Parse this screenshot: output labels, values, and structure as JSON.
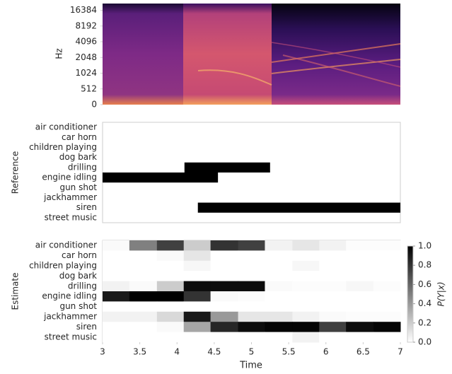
{
  "chart_data": [
    {
      "type": "spectrogram",
      "ylabel": "Hz",
      "ylim": [
        0,
        22050
      ],
      "yticks": [
        0,
        512,
        1024,
        2048,
        4096,
        8192,
        16384
      ]
    },
    {
      "type": "intervals",
      "ylabel": "Reference",
      "color": "#000000",
      "xlim": [
        3,
        7
      ],
      "categories": [
        "air conditioner",
        "car horn",
        "children playing",
        "dog bark",
        "drilling",
        "engine idling",
        "gun shot",
        "jackhammer",
        "siren",
        "street music"
      ],
      "intervals": [
        [],
        [],
        [],
        [],
        [
          [
            4.1,
            5.25
          ]
        ],
        [
          [
            3.0,
            4.55
          ]
        ],
        [],
        [],
        [
          [
            4.28,
            7.0
          ]
        ],
        []
      ]
    },
    {
      "type": "heatmap",
      "ylabel": "Estimate",
      "xlabel": "Time",
      "xlim": [
        3,
        7
      ],
      "xticks": [
        3,
        3.5,
        4,
        4.5,
        5,
        5.5,
        6,
        6.5,
        7
      ],
      "categories": [
        "air conditioner",
        "car horn",
        "children playing",
        "dog bark",
        "drilling",
        "engine idling",
        "gun shot",
        "jackhammer",
        "siren",
        "street music"
      ],
      "x": [
        3.0,
        3.36,
        3.73,
        4.09,
        4.45,
        4.82,
        5.18,
        5.55,
        5.91,
        6.27,
        6.64,
        7.0
      ],
      "values": [
        [
          0.02,
          0.5,
          0.75,
          0.2,
          0.8,
          0.75,
          0.05,
          0.1,
          0.05,
          0.01,
          0.01
        ],
        [
          0,
          0,
          0.02,
          0.1,
          0,
          0,
          0,
          0,
          0,
          0,
          0
        ],
        [
          0,
          0,
          0,
          0.03,
          0,
          0,
          0,
          0.03,
          0,
          0,
          0
        ],
        [
          0,
          0,
          0,
          0,
          0,
          0,
          0,
          0,
          0,
          0,
          0
        ],
        [
          0.05,
          0.02,
          0.2,
          0.95,
          0.95,
          0.95,
          0.02,
          0.01,
          0.01,
          0.03,
          0.01
        ],
        [
          0.9,
          1.0,
          1.0,
          0.8,
          0.02,
          0.01,
          0,
          0,
          0,
          0,
          0
        ],
        [
          0,
          0,
          0,
          0,
          0,
          0,
          0,
          0,
          0,
          0,
          0
        ],
        [
          0.05,
          0.05,
          0.15,
          0.9,
          0.4,
          0.1,
          0.1,
          0.05,
          0.02,
          0.01,
          0.01
        ],
        [
          0,
          0,
          0.02,
          0.35,
          0.85,
          0.95,
          0.98,
          0.98,
          0.75,
          0.95,
          0.98
        ],
        [
          0,
          0,
          0,
          0,
          0,
          0,
          0,
          0.05,
          0,
          0,
          0
        ]
      ],
      "colorbar": {
        "label": "P(Y|x)",
        "lim": [
          0,
          1
        ],
        "ticks": [
          {
            "value": 0,
            "label": "0.0"
          },
          0.2,
          0.4,
          0.6,
          0.8,
          {
            "value": 1,
            "label": "1.0"
          }
        ]
      }
    }
  ]
}
